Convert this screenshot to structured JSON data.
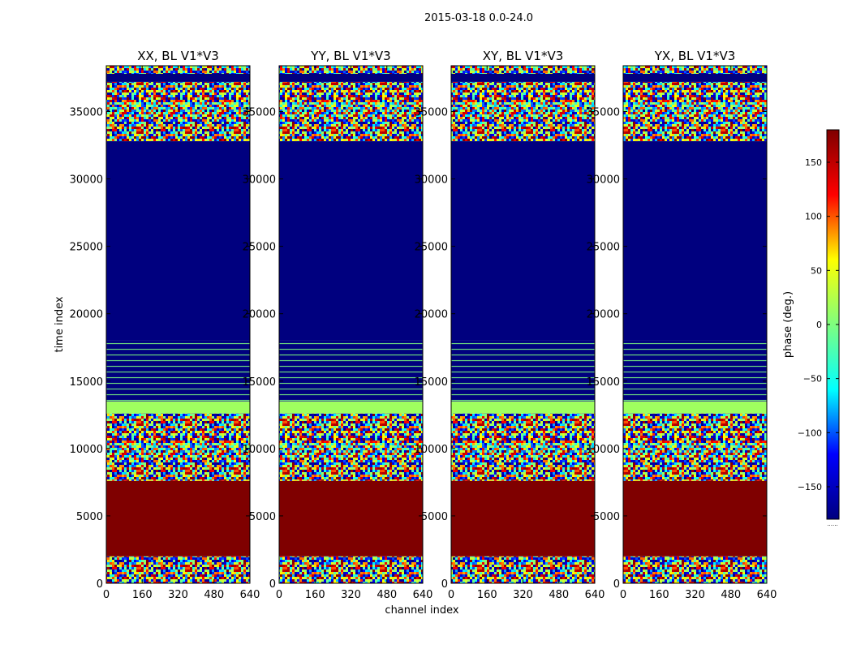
{
  "chart_data": {
    "type": "heatmap",
    "suptitle": "2015-03-18 0.0-24.0",
    "xlabel": "channel index",
    "ylabel": "time index",
    "xlim": [
      0,
      640
    ],
    "ylim": [
      0,
      38400
    ],
    "xticks": [
      0,
      160,
      320,
      480,
      640
    ],
    "yticks": [
      0,
      5000,
      10000,
      15000,
      20000,
      25000,
      30000,
      35000
    ],
    "xtick_labels": [
      "0",
      "160",
      "320",
      "480",
      "640"
    ],
    "ytick_labels": [
      "0",
      "5000",
      "10000",
      "15000",
      "20000",
      "25000",
      "30000",
      "35000"
    ],
    "colorbar": {
      "label": "phase (deg.)",
      "range": [
        -180,
        180
      ],
      "ticks": [
        150,
        100,
        50,
        0,
        -50,
        -100,
        -150
      ],
      "tick_labels": [
        "150",
        "100",
        "50",
        "0",
        "−50",
        "−100",
        "−150"
      ],
      "colormap": "jet",
      "stops": [
        "#00007f",
        "#0000ff",
        "#00ffff",
        "#7fff7f",
        "#ffff00",
        "#ff0000",
        "#7f0000"
      ],
      "footnote": "......"
    },
    "panels": [
      {
        "title": "XX, BL V1*V3",
        "polarization": "XX"
      },
      {
        "title": "YY, BL V1*V3",
        "polarization": "YY"
      },
      {
        "title": "XY, BL V1*V3",
        "polarization": "XY"
      },
      {
        "title": "YX, BL V1*V3",
        "polarization": "YX"
      }
    ],
    "bands": [
      {
        "from": 0,
        "to": 2000,
        "pattern": "noise",
        "phase": null
      },
      {
        "from": 2000,
        "to": 7600,
        "pattern": "solid",
        "phase": 180
      },
      {
        "from": 7600,
        "to": 12600,
        "pattern": "noise",
        "phase": null
      },
      {
        "from": 12600,
        "to": 13500,
        "pattern": "solid",
        "phase": 15
      },
      {
        "from": 13500,
        "to": 18000,
        "pattern": "striped",
        "phase": -180
      },
      {
        "from": 18000,
        "to": 32800,
        "pattern": "solid",
        "phase": -180
      },
      {
        "from": 32800,
        "to": 37200,
        "pattern": "noise",
        "phase": null
      },
      {
        "from": 37200,
        "to": 37800,
        "pattern": "solid",
        "phase": -180
      },
      {
        "from": 37800,
        "to": 38400,
        "pattern": "noise",
        "phase": null
      }
    ]
  }
}
